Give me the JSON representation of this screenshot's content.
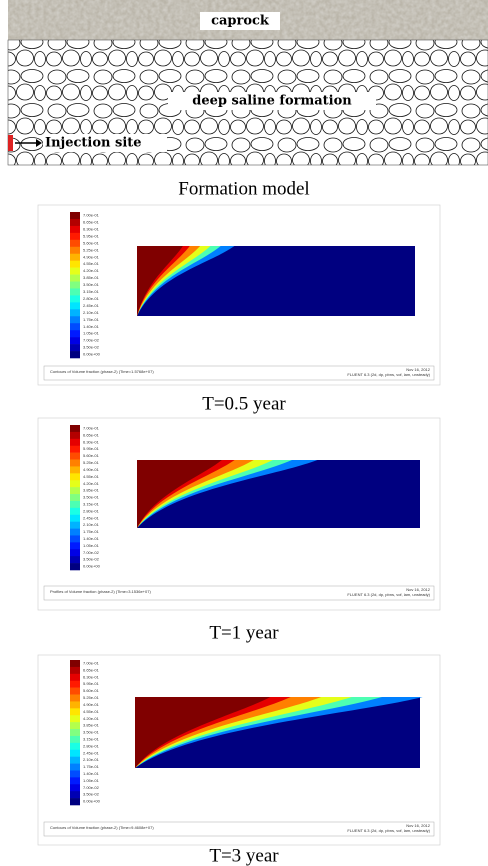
{
  "formation_model": {
    "caprock": "caprock",
    "formation": "deep saline formation",
    "injection": "Injection site",
    "caption": "Formation model"
  },
  "panels": [
    {
      "caption": "T=0.5 year",
      "footer_left": "Contours of Volume fraction (phase-2)  (Time=1.5768e+07)",
      "footer_date": "Nov 16, 2012",
      "footer_right": "FLUENT 6.3 (2d, dp, pbns, vof, lam, unsteady)",
      "colorbar_labels": [
        "7.00e-01",
        "6.65e-01",
        "6.30e-01",
        "5.95e-01",
        "5.60e-01",
        "5.25e-01",
        "4.90e-01",
        "4.55e-01",
        "4.20e-01",
        "3.85e-01",
        "3.50e-01",
        "3.15e-01",
        "2.80e-01",
        "2.45e-01",
        "2.10e-01",
        "1.75e-01",
        "1.40e-01",
        "1.05e-01",
        "7.00e-02",
        "3.50e-02",
        "0.00e+00"
      ]
    },
    {
      "caption": "T=1 year",
      "footer_left": "Profiles of Volume fraction (phase-2)  (Time=3.1536e+07)",
      "footer_date": "Nov 16, 2012",
      "footer_right": "FLUENT 6.3 (2d, dp, pbns, vof, lam, unsteady)",
      "colorbar_labels": [
        "7.00e-01",
        "6.65e-01",
        "6.30e-01",
        "5.95e-01",
        "5.60e-01",
        "5.25e-01",
        "4.90e-01",
        "4.55e-01",
        "4.20e-01",
        "3.85e-01",
        "3.50e-01",
        "3.15e-01",
        "2.80e-01",
        "2.45e-01",
        "2.10e-01",
        "1.75e-01",
        "1.40e-01",
        "1.05e-01",
        "7.00e-02",
        "3.50e-02",
        "0.00e+00"
      ]
    },
    {
      "caption": "T=3 year",
      "footer_left": "Contours of Volume fraction (phase-2)  (Time=9.4608e+07)",
      "footer_date": "Nov 16, 2012",
      "footer_right": "FLUENT 6.3 (2d, dp, pbns, vof, lam, unsteady)",
      "colorbar_labels": [
        "7.00e-01",
        "6.65e-01",
        "6.30e-01",
        "5.95e-01",
        "5.60e-01",
        "5.25e-01",
        "4.90e-01",
        "4.55e-01",
        "4.20e-01",
        "3.85e-01",
        "3.50e-01",
        "3.15e-01",
        "2.80e-01",
        "2.45e-01",
        "2.10e-01",
        "1.75e-01",
        "1.40e-01",
        "1.05e-01",
        "7.00e-02",
        "3.50e-02",
        "0.00e+00"
      ]
    }
  ]
}
